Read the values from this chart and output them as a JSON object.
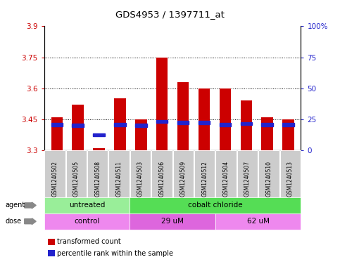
{
  "title": "GDS4953 / 1397711_at",
  "samples": [
    "GSM1240502",
    "GSM1240505",
    "GSM1240508",
    "GSM1240511",
    "GSM1240503",
    "GSM1240506",
    "GSM1240509",
    "GSM1240512",
    "GSM1240504",
    "GSM1240507",
    "GSM1240510",
    "GSM1240513"
  ],
  "bar_values": [
    3.46,
    3.52,
    3.31,
    3.55,
    3.45,
    3.75,
    3.63,
    3.6,
    3.6,
    3.54,
    3.46,
    3.45
  ],
  "bar_base": 3.3,
  "percentile_values": [
    3.425,
    3.42,
    3.375,
    3.425,
    3.42,
    3.44,
    3.435,
    3.435,
    3.425,
    3.43,
    3.425,
    3.425
  ],
  "ylim": [
    3.3,
    3.9
  ],
  "yticks_left": [
    3.3,
    3.45,
    3.6,
    3.75,
    3.9
  ],
  "yticks_right": [
    0,
    25,
    50,
    75,
    100
  ],
  "ytick_labels_right": [
    "0",
    "25",
    "50",
    "75",
    "100%"
  ],
  "gridlines": [
    3.45,
    3.6,
    3.75
  ],
  "bar_color": "#cc0000",
  "percentile_color": "#2222cc",
  "agent_groups": [
    {
      "label": "untreated",
      "start": 0,
      "end": 4,
      "color": "#99ee99"
    },
    {
      "label": "cobalt chloride",
      "start": 4,
      "end": 12,
      "color": "#55dd55"
    }
  ],
  "dose_groups": [
    {
      "label": "control",
      "start": 0,
      "end": 4,
      "color": "#ee88ee"
    },
    {
      "label": "29 uM",
      "start": 4,
      "end": 8,
      "color": "#dd66dd"
    },
    {
      "label": "62 uM",
      "start": 8,
      "end": 12,
      "color": "#ee88ee"
    }
  ],
  "legend_bar_color": "#cc0000",
  "legend_pct_color": "#2222cc",
  "bar_width": 0.55,
  "plot_bg_color": "#ffffff",
  "fig_bg_color": "#ffffff",
  "tick_label_color_left": "#cc0000",
  "tick_label_color_right": "#2222cc",
  "sample_box_color": "#cccccc",
  "agent_row_color_light": "#99ee99",
  "agent_row_color_dark": "#55dd55",
  "dose_row_color_light": "#ee88ee",
  "dose_row_color_dark": "#dd66dd"
}
